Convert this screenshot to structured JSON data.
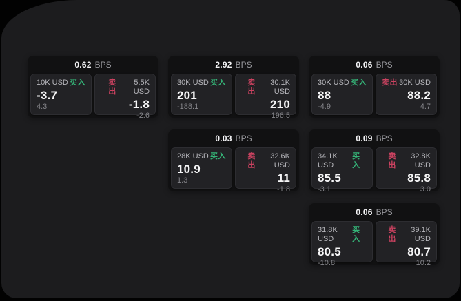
{
  "labels": {
    "buy": "买入",
    "sell": "卖出",
    "bps_unit": "BPS"
  },
  "palette": {
    "buy_green": "#35b578",
    "sell_red": "#cb4260",
    "background": "#1c1c1e",
    "card_background": "#111112",
    "panel_background": "#222225"
  },
  "cards": [
    {
      "bps": "0.62",
      "col": 1,
      "row": 1,
      "buy": {
        "size": "10K USD",
        "price": "-3.7",
        "change": "4.3"
      },
      "sell": {
        "size": "5.5K USD",
        "price": "-1.8",
        "change": "-2.6"
      }
    },
    {
      "bps": "2.92",
      "col": 2,
      "row": 1,
      "buy": {
        "size": "30K USD",
        "price": "201",
        "change": "-188.1"
      },
      "sell": {
        "size": "30.1K USD",
        "price": "210",
        "change": "196.5"
      }
    },
    {
      "bps": "0.06",
      "col": 3,
      "row": 1,
      "buy": {
        "size": "30K USD",
        "price": "88",
        "change": "-4.9"
      },
      "sell": {
        "size": "30K USD",
        "price": "88.2",
        "change": "4.7"
      }
    },
    {
      "bps": "0.03",
      "col": 2,
      "row": 2,
      "buy": {
        "size": "28K USD",
        "price": "10.9",
        "change": "1.3"
      },
      "sell": {
        "size": "32.6K USD",
        "price": "11",
        "change": "-1.8"
      }
    },
    {
      "bps": "0.09",
      "col": 3,
      "row": 2,
      "buy": {
        "size": "34.1K USD",
        "price": "85.5",
        "change": "-3.1"
      },
      "sell": {
        "size": "32.8K USD",
        "price": "85.8",
        "change": "3.0"
      }
    },
    {
      "bps": "0.06",
      "col": 3,
      "row": 3,
      "buy": {
        "size": "31.8K USD",
        "price": "80.5",
        "change": "-10.8"
      },
      "sell": {
        "size": "39.1K USD",
        "price": "80.7",
        "change": "10.2"
      }
    }
  ],
  "layout_grid": {
    "col_lefts": [
      38,
      242,
      446
    ],
    "row_tops": [
      81,
      188,
      295
    ]
  }
}
